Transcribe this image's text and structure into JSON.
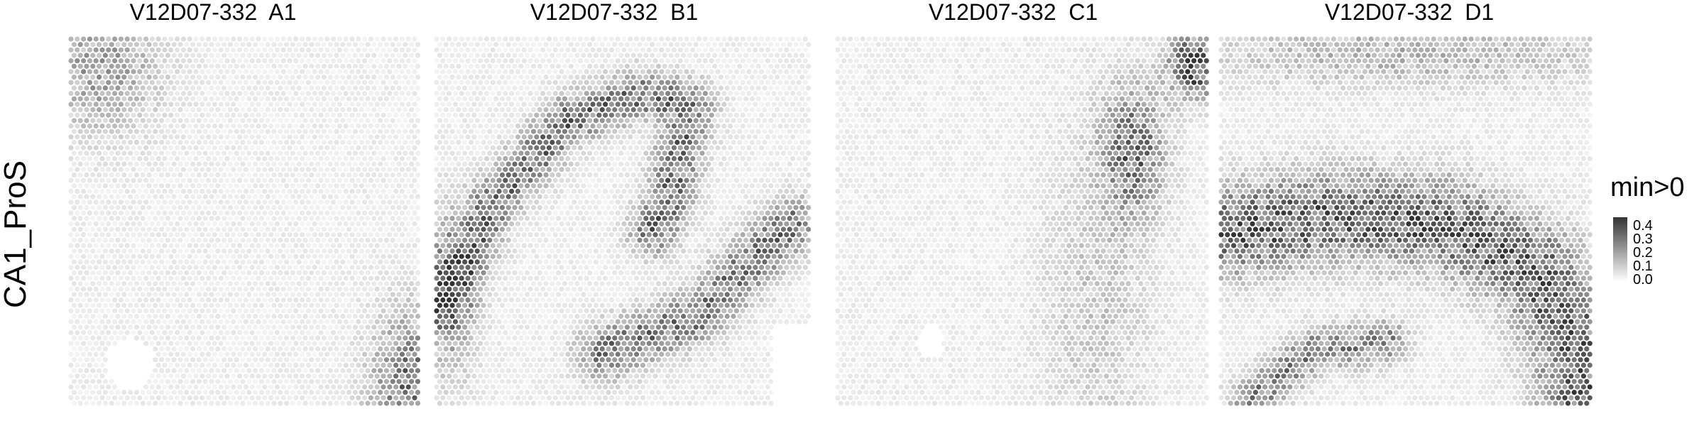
{
  "figure": {
    "row_label": "CA1_ProS",
    "legend": {
      "title": "min>0",
      "ticks": [
        "0.4",
        "0.3",
        "0.2",
        "0.1",
        "0.0"
      ],
      "low_color": "#ffffff",
      "high_color": "#333333"
    }
  },
  "chart_data": {
    "type": "heatmap",
    "description_of_mark": "hexagonal spatial spots colored by value",
    "value_range": [
      0.0,
      0.45
    ],
    "panels": [
      {
        "title": "V12D07-332  A1",
        "pattern": "diffuse low signal; darker patch top-left and bottom-right corner",
        "hotspots": [
          {
            "region": "top-left",
            "value": 0.2
          },
          {
            "region": "bottom-right",
            "value": 0.3
          }
        ]
      },
      {
        "title": "V12D07-332  B1",
        "pattern": "curved band of higher signal forming a hippocampal-shaped arc",
        "hotspots": [
          {
            "region": "upper arc",
            "value": 0.3
          },
          {
            "region": "right descending band",
            "value": 0.3
          },
          {
            "region": "left edge",
            "value": 0.25
          }
        ]
      },
      {
        "title": "V12D07-332  C1",
        "pattern": "mostly low signal with a dark cluster at top-right",
        "hotspots": [
          {
            "region": "top-right",
            "value": 0.4
          },
          {
            "region": "right-center",
            "value": 0.3
          }
        ]
      },
      {
        "title": "V12D07-332  D1",
        "pattern": "broad high-signal band across middle, curved band at bottom",
        "hotspots": [
          {
            "region": "middle band",
            "value": 0.35
          },
          {
            "region": "bottom-right",
            "value": 0.35
          },
          {
            "region": "bottom arc",
            "value": 0.25
          }
        ]
      }
    ]
  }
}
